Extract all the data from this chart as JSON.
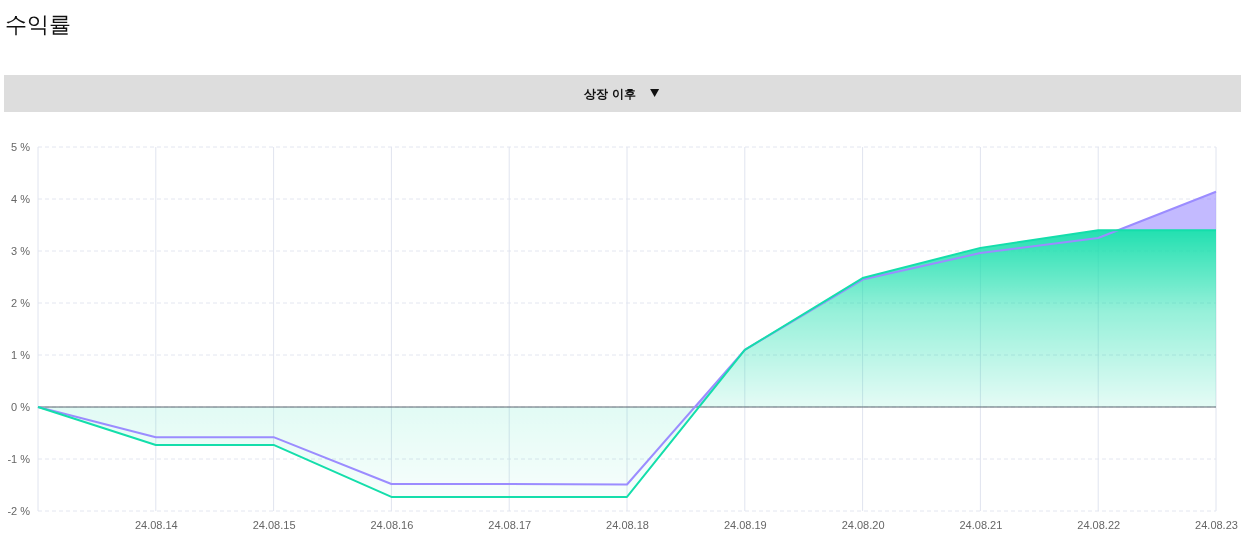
{
  "chart_data": {
    "type": "area",
    "title": "수익률",
    "annotations": [
      "상장 이후"
    ],
    "categories": [
      null,
      "24.08.14",
      "24.08.15",
      "24.08.16",
      "24.08.17",
      "24.08.18",
      "24.08.19",
      "24.08.20",
      "24.08.21",
      "24.08.22",
      "24.08.23"
    ],
    "series": [
      {
        "color": "#9b8cff",
        "values": [
          0,
          -0.58,
          -0.58,
          -1.48,
          -1.48,
          -1.49,
          1.1,
          2.45,
          2.96,
          3.25,
          4.14
        ]
      },
      {
        "color": "#14deab",
        "values": [
          0,
          -0.73,
          -0.73,
          -1.73,
          -1.73,
          -1.73,
          1.1,
          2.48,
          3.06,
          3.4,
          3.4
        ]
      }
    ],
    "ylim": [
      -2,
      5
    ],
    "yticks": [
      {
        "value": -2,
        "label": "-2 %"
      },
      {
        "value": -1,
        "label": "-1 %"
      },
      {
        "value": 0,
        "label": "0 %"
      },
      {
        "value": 1,
        "label": "1 %"
      },
      {
        "value": 2,
        "label": "2 %"
      },
      {
        "value": 3,
        "label": "3 %"
      },
      {
        "value": 4,
        "label": "4 %"
      },
      {
        "value": 5,
        "label": "5 %"
      }
    ],
    "grid": true
  }
}
